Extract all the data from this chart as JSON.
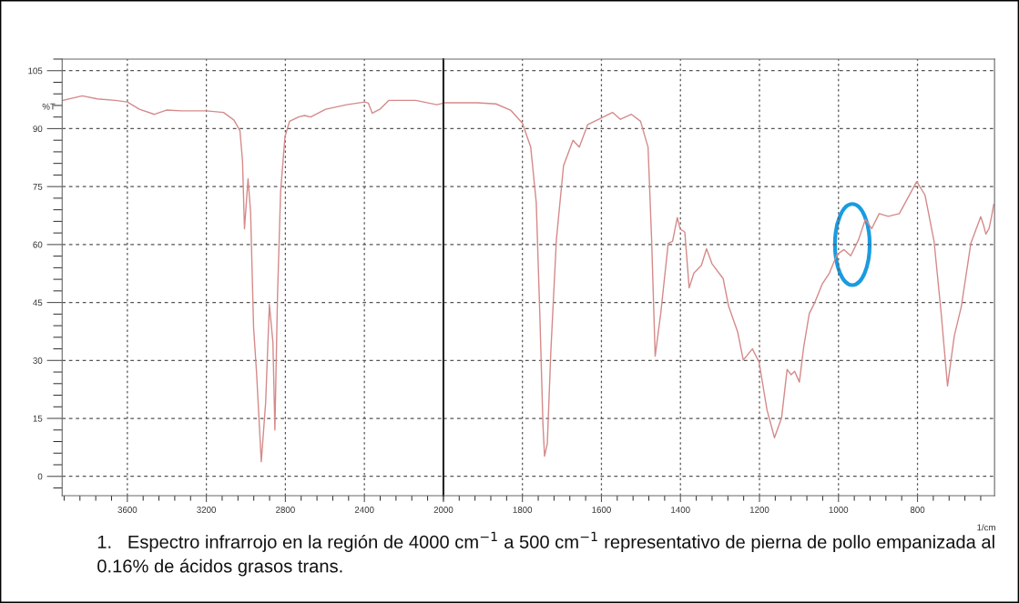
{
  "chart_data": [
    {
      "type": "line",
      "ylabel": "%T",
      "xlim": [
        3930,
        2000
      ],
      "ylim": [
        -5,
        108
      ],
      "xticks": [
        3600,
        3200,
        2800,
        2400
      ],
      "yticks": [
        0,
        15,
        30,
        45,
        60,
        75,
        90,
        105
      ],
      "grid": true,
      "line_style": "solid",
      "x": [
        3927,
        3828,
        3752,
        3661,
        3600,
        3539,
        3463,
        3402,
        3326,
        3200,
        3113,
        3060,
        3030,
        3017,
        3007,
        2989,
        2976,
        2961,
        2946,
        2922,
        2900,
        2881,
        2863,
        2853,
        2840,
        2824,
        2802,
        2779,
        2733,
        2703,
        2672,
        2596,
        2490,
        2398,
        2380,
        2360,
        2322,
        2277,
        2140,
        2033,
        2000
      ],
      "series": [
        {
          "color": "#d58a8a",
          "values": [
            97.3,
            98.5,
            97.7,
            97.3,
            96.9,
            95.0,
            93.7,
            94.8,
            94.6,
            94.6,
            94.2,
            92.2,
            89.5,
            81.7,
            64.1,
            77.0,
            68.4,
            38.6,
            26.9,
            3.8,
            19.0,
            44.5,
            34.7,
            12.0,
            46.4,
            73.8,
            87.9,
            91.9,
            93.0,
            93.4,
            93.0,
            95.0,
            96.2,
            96.9,
            96.6,
            94.0,
            95.0,
            97.3,
            97.3,
            96.2,
            96.6
          ]
        }
      ],
      "annotations": [
        "1.   Espectro infrarrojo en la región de 4000 cm$^{−1}$ a 500 cm$^{−1}$ representativo de pierna de pollo empanizada al 0.16% de ácidos grasos trans."
      ]
    },
    {
      "type": "line",
      "xlabel": "1/cm",
      "xlim": [
        2000,
        605
      ],
      "ylim": [
        -5,
        108
      ],
      "xticks": [
        2000,
        1800,
        1600,
        1400,
        1200,
        1000,
        800
      ],
      "yticks": [
        0,
        15,
        30,
        45,
        60,
        75,
        90,
        105
      ],
      "grid": true,
      "line_style": "solid",
      "tick_labels": "x",
      "x": [
        2000,
        1914,
        1867,
        1830,
        1800,
        1779,
        1765,
        1756,
        1748,
        1744,
        1737,
        1728,
        1714,
        1696,
        1672,
        1656,
        1635,
        1607,
        1572,
        1552,
        1524,
        1501,
        1482,
        1473,
        1464,
        1450,
        1431,
        1420,
        1408,
        1401,
        1389,
        1378,
        1366,
        1347,
        1334,
        1320,
        1292,
        1278,
        1255,
        1241,
        1218,
        1201,
        1181,
        1162,
        1144,
        1130,
        1120,
        1111,
        1099,
        1088,
        1074,
        1060,
        1041,
        1023,
        1004,
        986,
        969,
        949,
        932,
        916,
        897,
        874,
        846,
        802,
        781,
        758,
        740,
        724,
        707,
        689,
        665,
        640,
        633,
        627,
        619,
        613,
        607
      ],
      "series": [
        {
          "color": "#d58a8a",
          "values": [
            96.7,
            96.7,
            96.4,
            94.8,
            91.4,
            85.2,
            70.9,
            42.1,
            13.3,
            5.2,
            8.5,
            32.5,
            61.3,
            80.4,
            87.0,
            85.2,
            91.0,
            92.4,
            94.2,
            92.4,
            93.7,
            91.9,
            85.2,
            61.3,
            31.1,
            42.1,
            60.3,
            60.8,
            67.0,
            64.1,
            63.2,
            48.8,
            52.6,
            54.6,
            58.9,
            55.0,
            51.2,
            44.0,
            37.3,
            30.1,
            33.0,
            29.6,
            17.2,
            10.0,
            15.2,
            27.7,
            26.3,
            27.2,
            24.4,
            33.5,
            42.1,
            45.0,
            49.8,
            52.6,
            57.4,
            58.7,
            57.1,
            61.3,
            66.5,
            64.1,
            68.0,
            67.3,
            68.0,
            76.3,
            72.8,
            60.8,
            42.1,
            23.4,
            36.3,
            44.0,
            60.3,
            67.2,
            65.1,
            62.7,
            64.1,
            67.0,
            70.4
          ]
        }
      ]
    }
  ]
}
